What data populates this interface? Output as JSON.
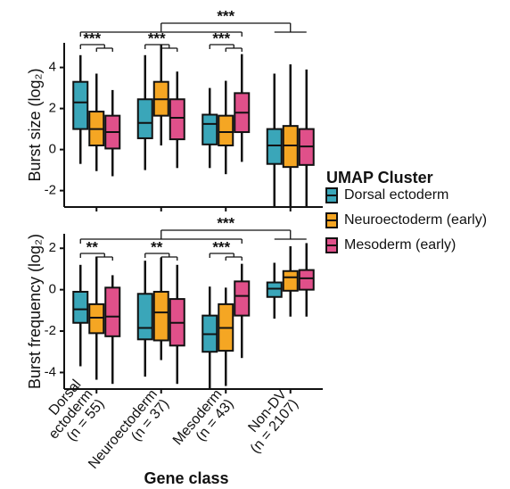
{
  "chart_data": [
    {
      "type": "box",
      "ylabel": "Burst size (log₂)",
      "ylim": [
        -2.8,
        5.2
      ],
      "yticks": [
        -2,
        0,
        2,
        4
      ],
      "legend_title": "UMAP Cluster",
      "group_annotations": [
        "***",
        "***",
        "***"
      ],
      "overall_annotation": "***",
      "series": [
        {
          "name": "Dorsal ectoderm",
          "color": "#3aa6b9",
          "values": [
            [
              -0.7,
              1.0,
              2.3,
              3.3,
              4.6
            ],
            [
              -1.0,
              0.55,
              1.3,
              2.45,
              4.6
            ],
            [
              -0.9,
              0.25,
              1.25,
              1.7,
              3.0
            ],
            [
              -2.8,
              -0.7,
              0.2,
              1.0,
              3.7
            ]
          ]
        },
        {
          "name": "Neuroectoderm (early)",
          "color": "#f5a623",
          "values": [
            [
              -1.05,
              0.2,
              1.0,
              1.85,
              3.7
            ],
            [
              0.2,
              1.65,
              2.45,
              3.3,
              5.1
            ],
            [
              -1.2,
              0.2,
              0.85,
              1.65,
              3.35
            ],
            [
              -2.8,
              -0.85,
              0.2,
              1.15,
              4.15
            ]
          ]
        },
        {
          "name": "Mesoderm (early)",
          "color": "#e0508a",
          "values": [
            [
              -1.3,
              0.05,
              0.85,
              1.65,
              2.9
            ],
            [
              -0.9,
              0.5,
              1.55,
              2.45,
              3.8
            ],
            [
              -0.6,
              0.85,
              1.8,
              2.75,
              4.65
            ],
            [
              -2.8,
              -0.75,
              0.15,
              1.0,
              3.9
            ]
          ]
        }
      ]
    },
    {
      "type": "box",
      "ylabel": "Burst frequency (log₂)",
      "xlabel": "Gene class",
      "categories": [
        [
          "Dorsal",
          "ectoderm"
        ],
        [
          "Neuroectoderm"
        ],
        [
          "Mesoderm"
        ],
        [
          "Non-DV"
        ]
      ],
      "n_labels": [
        "(n = 55)",
        "(n = 37)",
        "(n = 43)",
        "(n = 2107)"
      ],
      "ylim": [
        -4.8,
        2.7
      ],
      "yticks": [
        -4,
        -2,
        0,
        2
      ],
      "group_annotations": [
        "**",
        "**",
        "***"
      ],
      "overall_annotation": "***",
      "series": [
        {
          "values": [
            [
              -3.7,
              -1.6,
              -0.95,
              -0.1,
              1.2
            ],
            [
              -4.2,
              -2.4,
              -1.85,
              -0.2,
              1.4
            ],
            [
              -4.8,
              -3.0,
              -2.15,
              -1.25,
              0.15
            ],
            [
              -1.4,
              -0.35,
              0.05,
              0.35,
              1.3
            ]
          ]
        },
        {
          "values": [
            [
              -4.35,
              -2.1,
              -1.35,
              -0.7,
              1.6
            ],
            [
              -3.4,
              -2.45,
              -1.1,
              -0.1,
              1.55
            ],
            [
              -4.65,
              -2.95,
              -1.85,
              -0.7,
              0.1
            ],
            [
              -1.3,
              -0.05,
              0.6,
              0.9,
              2.1
            ]
          ]
        },
        {
          "values": [
            [
              -4.55,
              -2.25,
              -1.3,
              0.1,
              0.7
            ],
            [
              -4.55,
              -2.7,
              -1.6,
              -0.45,
              1.2
            ],
            [
              -3.3,
              -1.25,
              -0.3,
              0.4,
              1.25
            ],
            [
              -1.3,
              0.0,
              0.55,
              0.95,
              2.25
            ]
          ]
        }
      ]
    }
  ]
}
